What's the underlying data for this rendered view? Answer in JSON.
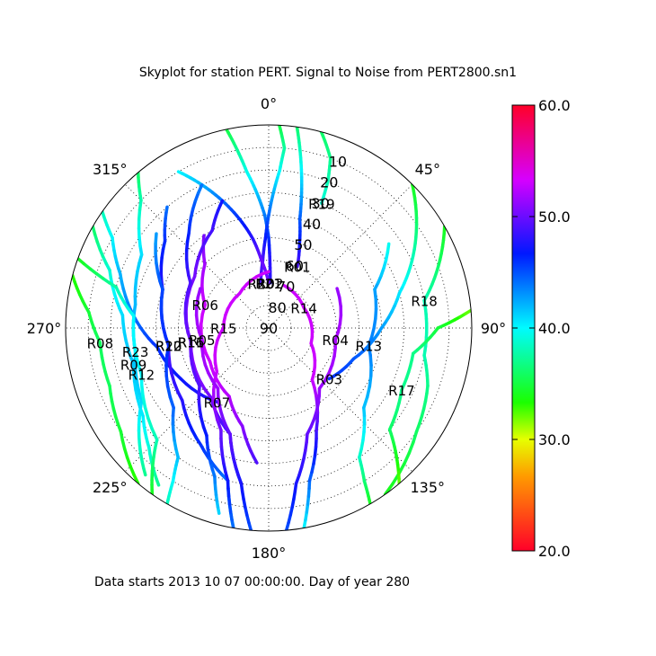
{
  "chart_data": {
    "type": "scatter",
    "title": "Skyplot for station PERT.   Signal to Noise from PERT2800.sn1",
    "footer": "Data starts 2013 10 07 00:00:00.  Day of year 280",
    "polar": {
      "zero_location": "top",
      "direction": "clockwise",
      "angle_labels": [
        "0°",
        "45°",
        "90°",
        "135°",
        "180°",
        "225°",
        "270°",
        "315°"
      ],
      "radial_labels": [
        "10",
        "20",
        "30",
        "40",
        "50",
        "60",
        "70",
        "80",
        "90"
      ],
      "grid": true
    },
    "colorbar": {
      "min": 20.0,
      "max": 60.0,
      "ticks": [
        "20.0",
        "30.0",
        "40.0",
        "50.0",
        "60.0"
      ],
      "colormap": "gist_rainbow"
    },
    "series": [
      {
        "name": "R19",
        "points": [
          [
            15,
            0
          ],
          [
            20,
            10
          ],
          [
            22,
            20
          ],
          [
            23,
            30
          ]
        ],
        "snr_min": 36,
        "snr_max": 42
      },
      {
        "name": "R02",
        "points": [
          [
            -12,
            0
          ],
          [
            -10,
            10
          ],
          [
            -8,
            20
          ],
          [
            -5,
            30
          ],
          [
            -2,
            40
          ],
          [
            0,
            50
          ],
          [
            1,
            60
          ],
          [
            2,
            70
          ]
        ],
        "snr_min": 35,
        "snr_max": 48
      },
      {
        "name": "R01",
        "points": [
          [
            8,
            0
          ],
          [
            10,
            10
          ],
          [
            12,
            20
          ],
          [
            14,
            30
          ],
          [
            16,
            40
          ],
          [
            20,
            50
          ],
          [
            25,
            60
          ]
        ],
        "snr_min": 36,
        "snr_max": 49
      },
      {
        "name": "R20",
        "points": [
          [
            3,
            0
          ],
          [
            5,
            10
          ],
          [
            4,
            20
          ],
          [
            2,
            30
          ],
          [
            0,
            40
          ],
          [
            -2,
            50
          ],
          [
            -5,
            60
          ],
          [
            -10,
            70
          ]
        ],
        "snr_min": 35,
        "snr_max": 49
      },
      {
        "name": "R21",
        "points": [
          [
            -30,
            10
          ],
          [
            -25,
            20
          ],
          [
            -20,
            30
          ],
          [
            -15,
            40
          ],
          [
            -10,
            50
          ],
          [
            -6,
            60
          ],
          [
            0,
            70
          ]
        ],
        "snr_min": 38,
        "snr_max": 50
      },
      {
        "name": "R03",
        "points": [
          [
            45,
            0
          ],
          [
            55,
            10
          ],
          [
            65,
            20
          ],
          [
            75,
            30
          ],
          [
            90,
            40
          ],
          [
            110,
            50
          ],
          [
            130,
            55
          ]
        ],
        "snr_min": 34,
        "snr_max": 47
      },
      {
        "name": "R18",
        "points": [
          [
            60,
            0
          ],
          [
            70,
            10
          ],
          [
            80,
            20
          ],
          [
            90,
            20
          ],
          [
            100,
            20
          ],
          [
            110,
            15
          ],
          [
            125,
            10
          ],
          [
            145,
            0
          ]
        ],
        "snr_min": 34,
        "snr_max": 46
      },
      {
        "name": "R07",
        "points": [
          [
            -55,
            0
          ],
          [
            -60,
            10
          ],
          [
            -70,
            20
          ],
          [
            -85,
            30
          ],
          [
            -100,
            40
          ],
          [
            -120,
            45
          ],
          [
            -145,
            50
          ]
        ],
        "snr_min": 38,
        "snr_max": 50
      },
      {
        "name": "R08",
        "points": [
          [
            -75,
            0
          ],
          [
            -85,
            10
          ],
          [
            -95,
            15
          ],
          [
            -110,
            15
          ],
          [
            -125,
            10
          ],
          [
            -140,
            0
          ]
        ],
        "snr_min": 33,
        "snr_max": 44
      },
      {
        "name": "R06",
        "points": [
          [
            -35,
            40
          ],
          [
            -45,
            50
          ],
          [
            -70,
            60
          ],
          [
            -120,
            60
          ],
          [
            -150,
            55
          ],
          [
            -165,
            45
          ],
          [
            -175,
            30
          ]
        ],
        "snr_min": 45,
        "snr_max": 53
      },
      {
        "name": "R22",
        "points": [
          [
            -40,
            20
          ],
          [
            -50,
            30
          ],
          [
            -70,
            40
          ],
          [
            -100,
            45
          ],
          [
            -130,
            40
          ],
          [
            -150,
            30
          ],
          [
            -165,
            20
          ],
          [
            -170,
            0
          ]
        ],
        "snr_min": 40,
        "snr_max": 52
      },
      {
        "name": "R16",
        "points": [
          [
            -20,
            30
          ],
          [
            -30,
            40
          ],
          [
            -55,
            50
          ],
          [
            -100,
            55
          ],
          [
            -140,
            50
          ],
          [
            -160,
            40
          ],
          [
            -170,
            20
          ]
        ],
        "snr_min": 42,
        "snr_max": 52
      },
      {
        "name": "R15",
        "points": [
          [
            -170,
            0
          ],
          [
            -165,
            20
          ],
          [
            -155,
            40
          ],
          [
            -130,
            60
          ],
          [
            -90,
            70
          ],
          [
            -40,
            70
          ],
          [
            0,
            65
          ]
        ],
        "snr_min": 44,
        "snr_max": 53
      },
      {
        "name": "R14",
        "points": [
          [
            170,
            0
          ],
          [
            165,
            20
          ],
          [
            155,
            40
          ],
          [
            140,
            60
          ],
          [
            110,
            70
          ],
          [
            60,
            72
          ],
          [
            20,
            70
          ]
        ],
        "snr_min": 40,
        "snr_max": 53
      },
      {
        "name": "R05",
        "points": [
          [
            -175,
            0
          ],
          [
            -170,
            20
          ],
          [
            -160,
            40
          ],
          [
            -140,
            55
          ],
          [
            -100,
            60
          ],
          [
            -60,
            55
          ]
        ],
        "snr_min": 45,
        "snr_max": 52
      },
      {
        "name": "R04",
        "points": [
          [
            175,
            0
          ],
          [
            170,
            20
          ],
          [
            160,
            40
          ],
          [
            140,
            55
          ],
          [
            100,
            60
          ],
          [
            60,
            55
          ]
        ],
        "snr_min": 45,
        "snr_max": 52
      },
      {
        "name": "R23",
        "points": [
          [
            -140,
            5
          ],
          [
            -130,
            15
          ],
          [
            -120,
            25
          ],
          [
            -100,
            30
          ],
          [
            -80,
            30
          ],
          [
            -60,
            25
          ],
          [
            -45,
            10
          ],
          [
            -40,
            0
          ]
        ],
        "snr_min": 36,
        "snr_max": 48
      },
      {
        "name": "R09",
        "points": [
          [
            -145,
            5
          ],
          [
            -135,
            15
          ],
          [
            -125,
            22
          ],
          [
            -105,
            28
          ],
          [
            -85,
            25
          ],
          [
            -70,
            15
          ],
          [
            -60,
            0
          ]
        ],
        "snr_min": 36,
        "snr_max": 48
      },
      {
        "name": "R11",
        "points": [
          [
            -165,
            5
          ],
          [
            -160,
            20
          ],
          [
            -150,
            35
          ],
          [
            -130,
            50
          ],
          [
            -100,
            55
          ],
          [
            -60,
            50
          ],
          [
            -40,
            35
          ],
          [
            -25,
            20
          ]
        ],
        "snr_min": 40,
        "snr_max": 51
      },
      {
        "name": "R10",
        "points": [
          [
            -150,
            0
          ],
          [
            -148,
            10
          ],
          [
            -145,
            20
          ],
          [
            -130,
            35
          ],
          [
            -100,
            45
          ],
          [
            -70,
            40
          ],
          [
            -50,
            25
          ]
        ],
        "snr_min": 38,
        "snr_max": 49
      },
      {
        "name": "R12",
        "points": [
          [
            -145,
            0
          ],
          [
            -140,
            10
          ],
          [
            -135,
            20
          ],
          [
            -110,
            30
          ],
          [
            -85,
            30
          ],
          [
            -75,
            20
          ],
          [
            -70,
            0
          ]
        ],
        "snr_min": 34,
        "snr_max": 46
      },
      {
        "name": "R13",
        "points": [
          [
            150,
            0
          ],
          [
            148,
            10
          ],
          [
            145,
            20
          ],
          [
            130,
            35
          ],
          [
            100,
            45
          ],
          [
            70,
            40
          ],
          [
            55,
            25
          ]
        ],
        "snr_min": 34,
        "snr_max": 47
      },
      {
        "name": "R17",
        "points": [
          [
            140,
            0
          ],
          [
            135,
            10
          ],
          [
            130,
            20
          ],
          [
            115,
            25
          ],
          [
            100,
            25
          ],
          [
            90,
            15
          ],
          [
            85,
            0
          ]
        ],
        "snr_min": 32,
        "snr_max": 44
      }
    ]
  }
}
